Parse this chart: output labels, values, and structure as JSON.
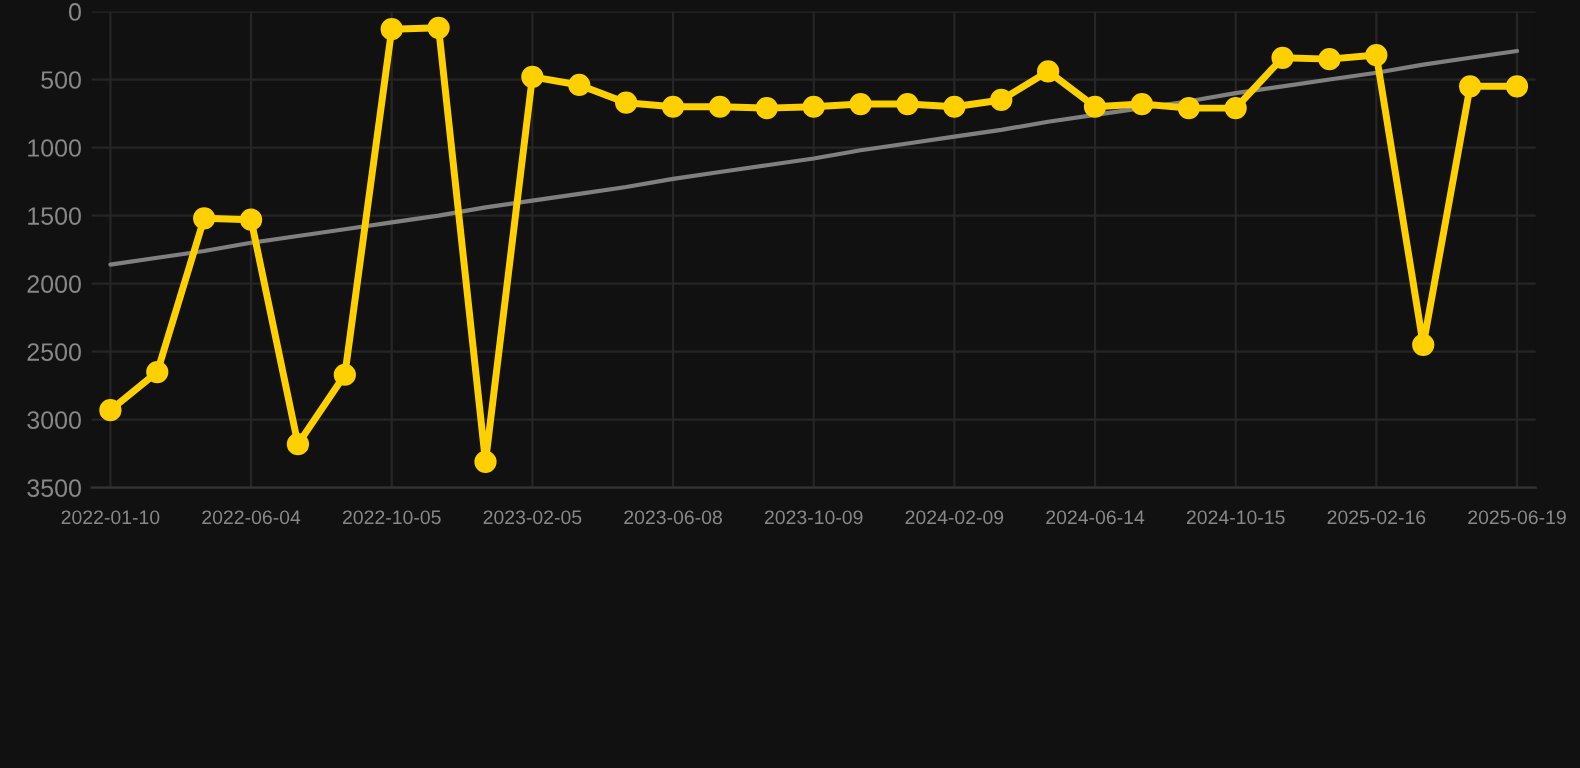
{
  "chart_data": {
    "type": "line",
    "categories": [
      "2022-01-10",
      null,
      null,
      "2022-06-04",
      null,
      null,
      "2022-10-05",
      null,
      null,
      "2023-02-05",
      null,
      null,
      "2023-06-08",
      null,
      null,
      "2023-10-09",
      null,
      null,
      "2024-02-09",
      null,
      null,
      "2024-06-14",
      null,
      null,
      "2024-10-15",
      null,
      null,
      "2025-02-16",
      null,
      null,
      "2025-06-19"
    ],
    "series": [
      {
        "color": "#ffd000",
        "marker": "circle",
        "values": [
          2930,
          2650,
          1520,
          1530,
          3180,
          2670,
          130,
          120,
          3310,
          480,
          540,
          670,
          700,
          700,
          710,
          700,
          680,
          680,
          700,
          650,
          440,
          700,
          680,
          710,
          710,
          340,
          350,
          320,
          2450,
          550,
          550
        ]
      },
      {
        "color": "#808080",
        "marker": "none",
        "values": [
          1860,
          1810,
          1760,
          1700,
          1650,
          1600,
          1550,
          1500,
          1440,
          1390,
          1340,
          1290,
          1230,
          1180,
          1130,
          1080,
          1020,
          970,
          920,
          870,
          810,
          760,
          710,
          660,
          600,
          550,
          500,
          450,
          390,
          340,
          290
        ]
      }
    ],
    "ylim": [
      3500,
      0
    ],
    "yticks": [
      0,
      500,
      1000,
      1500,
      2000,
      2500,
      3000,
      3500
    ],
    "grid": true,
    "legend": false
  }
}
